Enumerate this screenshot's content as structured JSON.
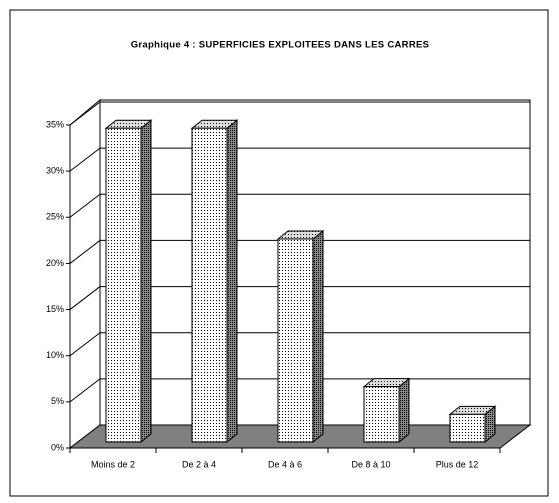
{
  "chart_data": {
    "type": "bar3d",
    "title": "Graphique 4 : SUPERFICIES EXPLOITEES DANS LES CARRES",
    "categories": [
      "Moins de 2",
      "De 2 à 4",
      "De 4 à 6",
      "De 8 à 10",
      "Plus de 12"
    ],
    "values": [
      34,
      34,
      22,
      6,
      3
    ],
    "ylim": [
      0,
      35
    ],
    "yticks": [
      {
        "value": 0,
        "label": "0%"
      },
      {
        "value": 5,
        "label": "5%"
      },
      {
        "value": 10,
        "label": "10%"
      },
      {
        "value": 15,
        "label": "15%"
      },
      {
        "value": 20,
        "label": "20%"
      },
      {
        "value": 25,
        "label": "25%"
      },
      {
        "value": 30,
        "label": "30%"
      },
      {
        "value": 35,
        "label": "35%"
      }
    ],
    "grid": true
  }
}
